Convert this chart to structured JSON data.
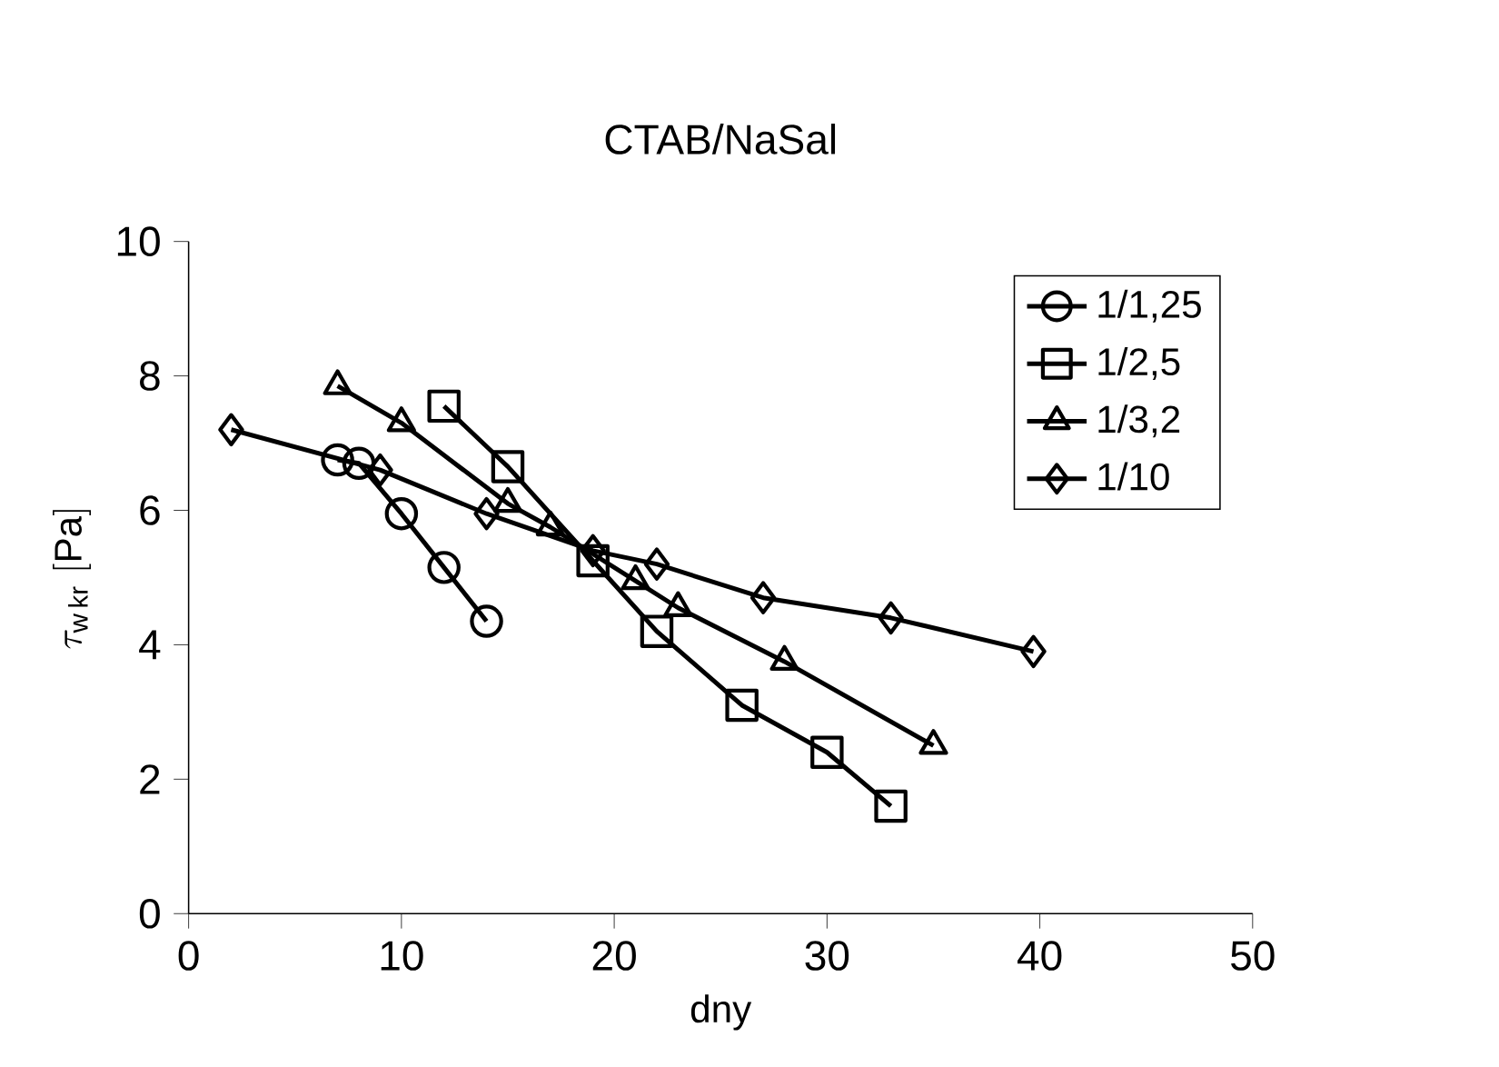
{
  "chart_data": {
    "type": "line",
    "title": "CTAB/NaSal",
    "xlabel": "dny",
    "ylabel": "\\tau_{\\mathrm{w\\,kr}}\\ \\mathrm{[Pa]}",
    "xlim": [
      0,
      50
    ],
    "xticks": [
      0,
      10,
      20,
      30,
      40,
      50
    ],
    "ylim": [
      0,
      10
    ],
    "yticks": [
      0,
      2,
      4,
      6,
      8,
      10
    ],
    "grid": false,
    "legend": "top right",
    "line_style": "solid",
    "series": [
      {
        "name": "1/1,25",
        "color": "#000000",
        "marker": "circle",
        "x": [
          7,
          8,
          10,
          12,
          14
        ],
        "values": [
          6.75,
          6.7,
          5.95,
          5.15,
          4.35
        ]
      },
      {
        "name": "1/2,5",
        "color": "#000000",
        "marker": "square",
        "x": [
          12,
          15,
          19,
          22,
          26,
          30,
          33
        ],
        "values": [
          7.55,
          6.65,
          5.25,
          4.2,
          3.1,
          2.4,
          1.6
        ]
      },
      {
        "name": "1/3,2",
        "color": "#000000",
        "marker": "triangle",
        "x": [
          7,
          10,
          15,
          17,
          21,
          23,
          28,
          35
        ],
        "values": [
          7.85,
          7.3,
          6.1,
          5.75,
          4.95,
          4.55,
          3.75,
          2.5
        ]
      },
      {
        "name": "1/10",
        "color": "#000000",
        "marker": "diamond",
        "x": [
          2,
          9,
          14,
          19,
          22,
          27,
          33,
          39.7
        ],
        "values": [
          7.2,
          6.6,
          5.95,
          5.4,
          5.2,
          4.7,
          4.4,
          3.9
        ]
      }
    ]
  }
}
